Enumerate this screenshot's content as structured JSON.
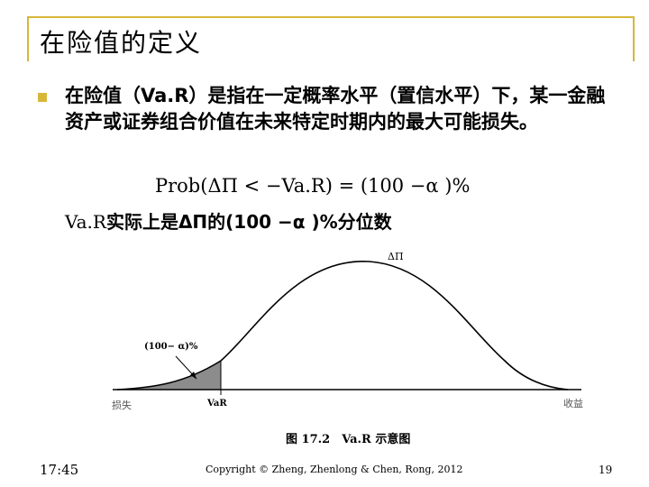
{
  "slide": {
    "title": "在险值的定义",
    "bullet_text": "在险值（Va.R）是指在一定概率水平（置信水平）下，某一金融资产或证券组合价值在未来特定时期内的最大可能损失。",
    "formula": "Prob(ΔΠ < −Va.R) = (100 −α )%",
    "var_line_prefix": "Va.R",
    "var_line_mid": "实际上是ΔΠ的(100 −α )%",
    "var_line_suffix": "分位数"
  },
  "figure": {
    "peak_label": "ΔΠ",
    "area_label": "(100− α)%",
    "left_axis_label": "损失",
    "right_axis_label": "收益",
    "var_label": "VaR",
    "caption": "图 17.2　Va.R 示意图"
  },
  "footer": {
    "time": "17:45",
    "copyright": "Copyright © Zheng, Zhenlong & Chen, Rong, 2012",
    "page": "19"
  },
  "colors": {
    "accent": "#d7b73a",
    "shade": "#8c8c8c"
  }
}
